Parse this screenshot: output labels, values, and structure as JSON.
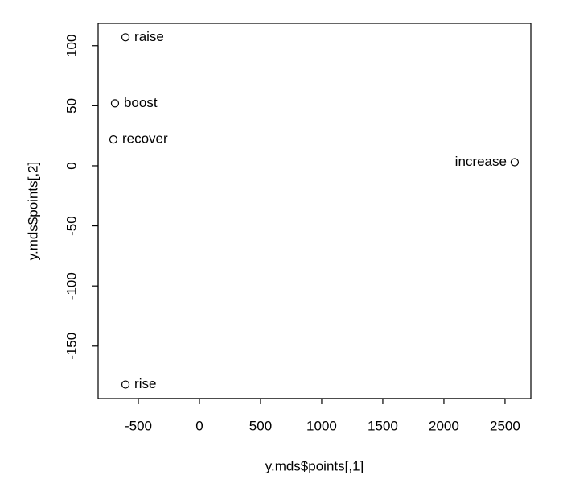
{
  "chart_data": {
    "type": "scatter",
    "x_label": "y.mds$points[,1]",
    "y_label": "y.mds$points[,2]",
    "labels": [
      "raise",
      "boost",
      "recover",
      "increase",
      "rise"
    ],
    "x": [
      -605,
      -691,
      -704,
      2579,
      -605
    ],
    "values": [
      107,
      52,
      22,
      3,
      -182
    ],
    "color": "#000000",
    "xlim": [
      -829,
      2711
    ],
    "ylim": [
      -193.7,
      118.6
    ],
    "xticks": [
      -500,
      0,
      500,
      1000,
      1500,
      2000,
      2500
    ],
    "yticks": [
      -150,
      -100,
      -50,
      0,
      50,
      100
    ]
  }
}
